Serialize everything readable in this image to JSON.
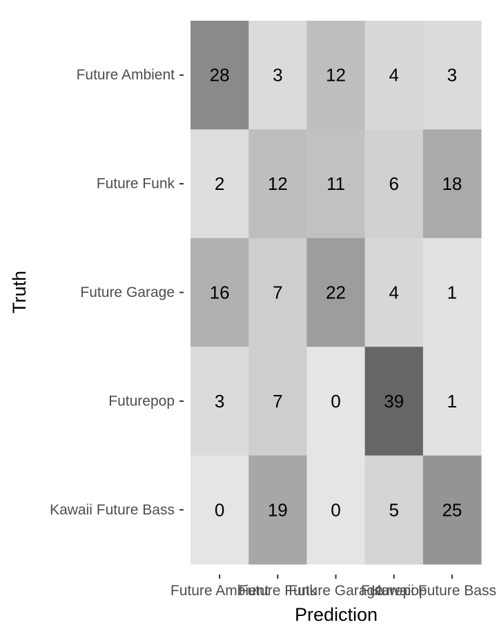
{
  "chart_data": {
    "type": "heatmap",
    "title": "",
    "xlabel": "Prediction",
    "ylabel": "Truth",
    "x_categories": [
      "Future Ambient",
      "Future Funk",
      "Future Garage",
      "Futurepop",
      "Kawaii Future Bass"
    ],
    "y_categories": [
      "Future Ambient",
      "Future Funk",
      "Future Garage",
      "Futurepop",
      "Kawaii Future Bass"
    ],
    "values": [
      [
        28,
        3,
        12,
        4,
        3
      ],
      [
        2,
        12,
        11,
        6,
        18
      ],
      [
        16,
        7,
        22,
        4,
        1
      ],
      [
        3,
        7,
        0,
        39,
        1
      ],
      [
        0,
        19,
        0,
        5,
        25
      ]
    ],
    "color_low": "#e5e5e5",
    "color_high": "#666666",
    "value_range": [
      0,
      39
    ],
    "legend": "none",
    "grid": false
  }
}
